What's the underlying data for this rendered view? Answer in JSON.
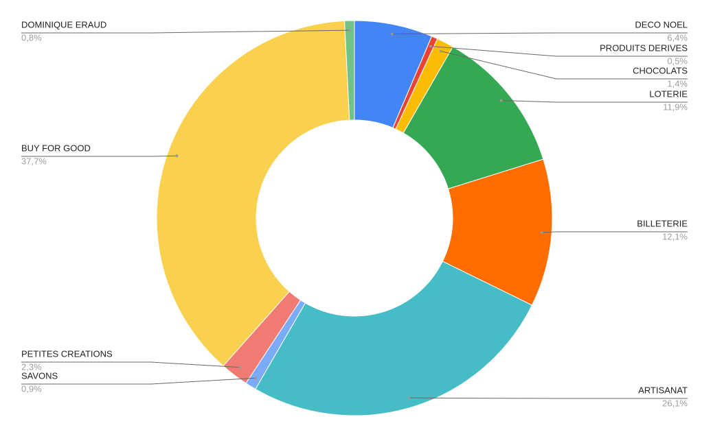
{
  "chart_data": {
    "type": "pie",
    "donut": true,
    "categories": [
      "DECO NOEL",
      "PRODUITS DERIVES",
      "CHOCOLATS",
      "LOTERIE",
      "BILLETERIE",
      "ARTISANAT",
      "SAVONS",
      "PETITES CREATIONS",
      "BUY FOR GOOD",
      "DOMINIQUE ERAUD"
    ],
    "values": [
      6.4,
      0.5,
      1.4,
      11.9,
      12.1,
      26.1,
      0.9,
      2.3,
      37.7,
      0.8
    ],
    "value_labels": [
      "6,4%",
      "0,5%",
      "1,4%",
      "11,9%",
      "12,1%",
      "26,1%",
      "0,9%",
      "2,3%",
      "37,7%",
      "0,8%"
    ],
    "colors": [
      "#4285f4",
      "#ea4335",
      "#fbbc04",
      "#34a853",
      "#ff6d01",
      "#46bdc6",
      "#7baaf7",
      "#f07b72",
      "#fad04f",
      "#71c287"
    ]
  }
}
